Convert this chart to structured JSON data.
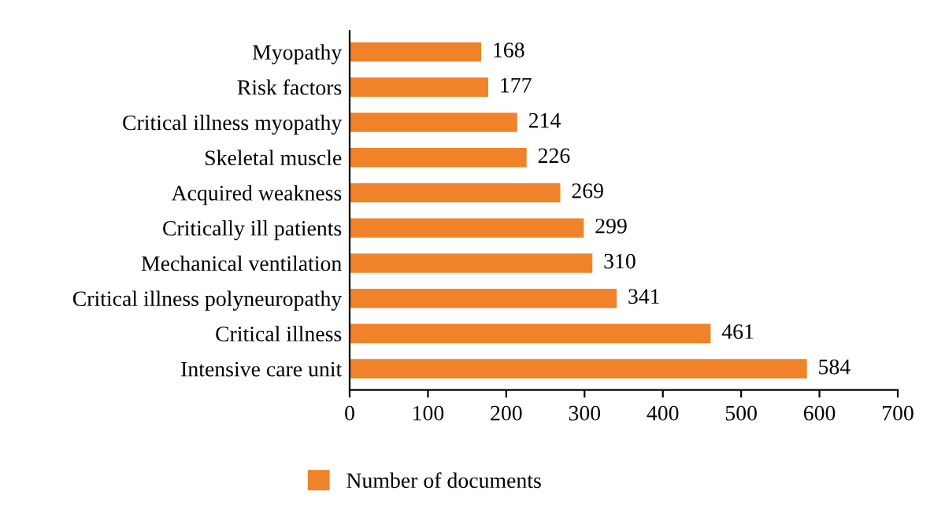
{
  "chart_data": {
    "type": "bar",
    "orientation": "horizontal",
    "categories": [
      "Myopathy",
      "Risk factors",
      "Critical illness myopathy",
      "Skeletal muscle",
      "Acquired weakness",
      "Critically ill patients",
      "Mechanical ventilation",
      "Critical illness polyneuropathy",
      "Critical illness",
      "Intensive care unit"
    ],
    "series": [
      {
        "name": "Number of documents",
        "color": "#f0832a",
        "values": [
          168,
          177,
          214,
          226,
          269,
          299,
          310,
          341,
          461,
          584
        ]
      }
    ],
    "xlim": [
      0,
      700
    ],
    "xticks": [
      0,
      100,
      200,
      300,
      400,
      500,
      600,
      700
    ],
    "data_labels": true,
    "grid": false,
    "legend": "bottom"
  }
}
